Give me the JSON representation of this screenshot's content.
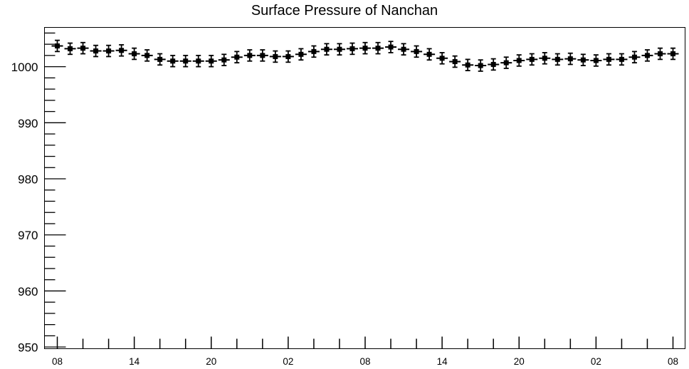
{
  "chart_data": {
    "type": "scatter",
    "title": "Surface Pressure of Nanchan",
    "xlabel": "",
    "ylabel": "",
    "x_tick_labels": [
      "08",
      "14",
      "20",
      "02",
      "08",
      "14",
      "20",
      "02",
      "08"
    ],
    "y_ticks": [
      950,
      960,
      970,
      980,
      990,
      1000
    ],
    "ylim": [
      949.7,
      1007
    ],
    "error": 1.0,
    "series": [
      {
        "values": [
          1003.7,
          1003.2,
          1003.3,
          1002.8,
          1002.8,
          1002.9,
          1002.3,
          1002.0,
          1001.3,
          1001.0,
          1001.0,
          1001.0,
          1001.0,
          1001.2,
          1001.7,
          1002.0,
          1002.0,
          1001.8,
          1001.8,
          1002.2,
          1002.7,
          1003.1,
          1003.1,
          1003.2,
          1003.3,
          1003.3,
          1003.5,
          1003.1,
          1002.7,
          1002.2,
          1001.5,
          1000.9,
          1000.3,
          1000.2,
          1000.4,
          1000.7,
          1001.1,
          1001.3,
          1001.5,
          1001.3,
          1001.4,
          1001.2,
          1001.1,
          1001.3,
          1001.3,
          1001.7,
          1002.0,
          1002.3,
          1002.3
        ]
      }
    ]
  }
}
